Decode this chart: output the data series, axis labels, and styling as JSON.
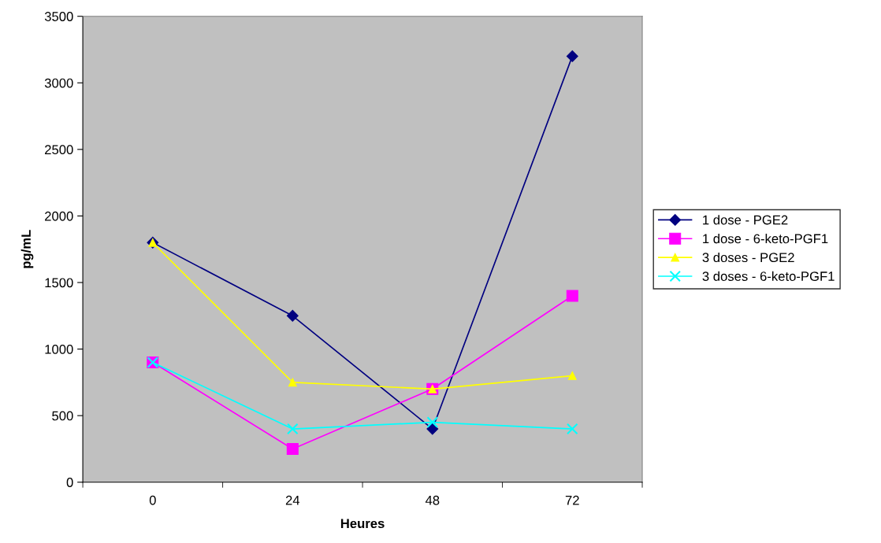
{
  "chart_data": {
    "type": "line",
    "xlabel": "Heures",
    "ylabel": "pg/mL",
    "categories": [
      "0",
      "24",
      "48",
      "72"
    ],
    "series": [
      {
        "name": "1 dose - PGE2",
        "color": "#000080",
        "marker": "diamond",
        "values": [
          1800,
          1250,
          400,
          3200
        ]
      },
      {
        "name": "1 dose - 6-keto-PGF1",
        "color": "#ff00ff",
        "marker": "square",
        "values": [
          900,
          250,
          700,
          1400
        ]
      },
      {
        "name": "3 doses - PGE2",
        "color": "#ffff00",
        "marker": "triangle",
        "values": [
          1800,
          750,
          700,
          800
        ]
      },
      {
        "name": "3 doses - 6-keto-PGF1",
        "color": "#00ffff",
        "marker": "cross",
        "values": [
          900,
          400,
          450,
          400
        ]
      }
    ],
    "ylim": [
      0,
      3500
    ],
    "yticks": [
      0,
      500,
      1000,
      1500,
      2000,
      2500,
      3000,
      3500
    ],
    "grid": false,
    "legend": "right",
    "line_style": "solid"
  }
}
